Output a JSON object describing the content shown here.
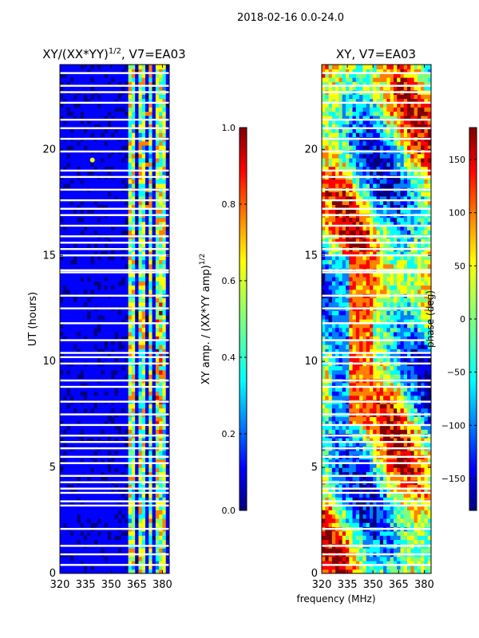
{
  "figure": {
    "suptitle": "2018-02-16 0.0-24.0",
    "shared_xlabel": "frequency (MHz)"
  },
  "colors": {
    "jet": [
      "#00007f",
      "#0000ff",
      "#007fff",
      "#00ffff",
      "#7fff7f",
      "#ffff00",
      "#ff7f00",
      "#ff0000",
      "#7f0000"
    ],
    "axis": "#000000",
    "gap": "#ffffff"
  },
  "chart_data": [
    {
      "type": "heatmap",
      "title_main": "XY/(XX*YY)",
      "title_exp": "1/2",
      "title_suffix": ", V7=EA03",
      "xlabel": "",
      "ylabel": "UT (hours)",
      "xlim": [
        320,
        384
      ],
      "ylim": [
        0,
        24
      ],
      "xticks": [
        320,
        335,
        350,
        365,
        380
      ],
      "yticks": [
        0,
        5,
        10,
        15,
        20
      ],
      "colorbar": {
        "label_main": "XY amp. / (XX*YY amp)",
        "label_exp": "1/2",
        "range": [
          0.0,
          1.0
        ],
        "ticks": [
          "0.0",
          "0.2",
          "0.4",
          "0.6",
          "0.8",
          "1.0"
        ],
        "tick_values": [
          0.0,
          0.2,
          0.4,
          0.6,
          0.8,
          1.0
        ]
      },
      "bright_channel_bands": [
        [
          361,
          364
        ],
        [
          366,
          369
        ],
        [
          372,
          374
        ],
        [
          376,
          379
        ],
        [
          380,
          381
        ]
      ],
      "bright_spot": {
        "x": 339,
        "y": 19.5
      }
    },
    {
      "type": "heatmap",
      "title_main": "XY, V7=EA03",
      "title_exp": "",
      "title_suffix": "",
      "xlabel": "frequency (MHz)",
      "ylabel": "",
      "xlim": [
        320,
        384
      ],
      "ylim": [
        0,
        24
      ],
      "xticks": [
        320,
        335,
        350,
        365,
        380
      ],
      "yticks": [
        0,
        5,
        10,
        15,
        20
      ],
      "colorbar": {
        "label_main": "phase (deg)",
        "label_exp": "",
        "range": [
          -180,
          180
        ],
        "ticks": [
          "150",
          "100",
          "50",
          "0",
          "−50",
          "−100",
          "−150"
        ],
        "tick_values": [
          150,
          100,
          50,
          0,
          -50,
          -100,
          -150
        ]
      }
    }
  ],
  "gap_rows_ut": [
    23.6,
    23.0,
    22.7,
    22.2,
    21.4,
    21.0,
    20.5,
    19.9,
    19.0,
    18.7,
    18.1,
    17.6,
    17.2,
    16.9,
    16.4,
    15.9,
    15.6,
    15.3,
    15.0,
    14.3,
    14.2,
    13.1,
    12.5,
    11.8,
    11.0,
    10.4,
    10.2,
    9.9,
    9.1,
    8.8,
    8.1,
    7.5,
    7.0,
    6.5,
    6.2,
    5.9,
    5.5,
    5.2,
    4.6,
    4.3,
    4.0,
    3.8,
    3.4,
    3.2,
    2.1,
    1.3,
    0.9,
    0.4
  ]
}
